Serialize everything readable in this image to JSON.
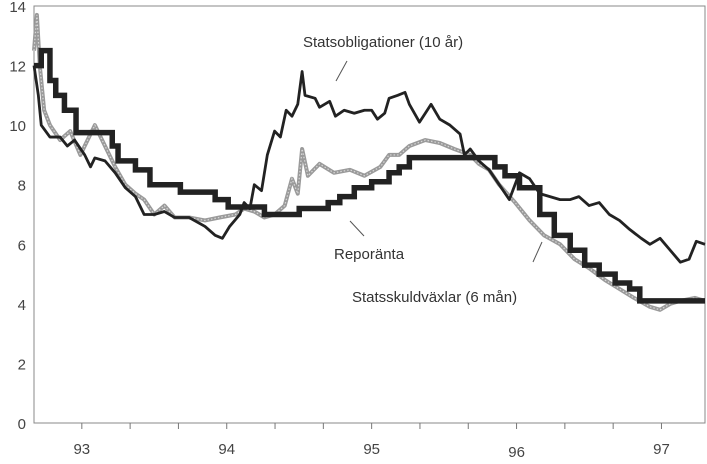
{
  "chart_data": {
    "type": "line",
    "title": "",
    "xlabel": "",
    "ylabel": "",
    "xlim": [
      1992.67,
      1997.3
    ],
    "ylim": [
      0,
      14
    ],
    "grid": false,
    "y_ticks": [
      0,
      2,
      4,
      6,
      8,
      10,
      12,
      14
    ],
    "y_tick_labels": [
      "0",
      "2",
      "4",
      "6",
      "8",
      "10",
      "12",
      "14"
    ],
    "x_tick_interval_years": 0.3333,
    "x_labels": [
      {
        "value": 1993,
        "label": "93"
      },
      {
        "value": 1994,
        "label": "94"
      },
      {
        "value": 1995,
        "label": "95"
      },
      {
        "value": 1996,
        "label": "96"
      },
      {
        "value": 1997,
        "label": "97"
      }
    ],
    "series": [
      {
        "name": "Statsobligationer (10 år)",
        "style": "thin-dark",
        "color": "#222222",
        "points": [
          [
            1992.67,
            12
          ],
          [
            1992.7,
            11
          ],
          [
            1992.72,
            10
          ],
          [
            1992.78,
            9.6
          ],
          [
            1992.85,
            9.6
          ],
          [
            1992.9,
            9.3
          ],
          [
            1992.95,
            9.5
          ],
          [
            1993.02,
            9.0
          ],
          [
            1993.06,
            8.6
          ],
          [
            1993.09,
            8.9
          ],
          [
            1993.16,
            8.8
          ],
          [
            1993.23,
            8.4
          ],
          [
            1993.3,
            7.9
          ],
          [
            1993.37,
            7.6
          ],
          [
            1993.43,
            7.0
          ],
          [
            1993.5,
            7.0
          ],
          [
            1993.57,
            7.1
          ],
          [
            1993.64,
            6.9
          ],
          [
            1993.74,
            6.9
          ],
          [
            1993.85,
            6.6
          ],
          [
            1993.92,
            6.3
          ],
          [
            1993.97,
            6.2
          ],
          [
            1994.02,
            6.6
          ],
          [
            1994.09,
            7.0
          ],
          [
            1994.12,
            7.4
          ],
          [
            1994.16,
            7.2
          ],
          [
            1994.19,
            8.0
          ],
          [
            1994.24,
            7.8
          ],
          [
            1994.28,
            9.0
          ],
          [
            1994.33,
            9.8
          ],
          [
            1994.37,
            9.6
          ],
          [
            1994.41,
            10.5
          ],
          [
            1994.45,
            10.3
          ],
          [
            1994.49,
            10.7
          ],
          [
            1994.52,
            11.8
          ],
          [
            1994.54,
            11.0
          ],
          [
            1994.61,
            10.9
          ],
          [
            1994.64,
            10.6
          ],
          [
            1994.71,
            10.8
          ],
          [
            1994.75,
            10.3
          ],
          [
            1994.81,
            10.5
          ],
          [
            1994.88,
            10.4
          ],
          [
            1994.95,
            10.5
          ],
          [
            1995.0,
            10.5
          ],
          [
            1995.04,
            10.2
          ],
          [
            1995.09,
            10.4
          ],
          [
            1995.12,
            10.9
          ],
          [
            1995.18,
            11.0
          ],
          [
            1995.23,
            11.1
          ],
          [
            1995.26,
            10.7
          ],
          [
            1995.33,
            10.1
          ],
          [
            1995.37,
            10.4
          ],
          [
            1995.41,
            10.7
          ],
          [
            1995.47,
            10.2
          ],
          [
            1995.54,
            10.0
          ],
          [
            1995.61,
            9.7
          ],
          [
            1995.64,
            9.0
          ],
          [
            1995.68,
            9.2
          ],
          [
            1995.74,
            8.8
          ],
          [
            1995.81,
            8.5
          ],
          [
            1995.88,
            8.0
          ],
          [
            1995.95,
            7.5
          ],
          [
            1996.02,
            8.4
          ],
          [
            1996.09,
            8.2
          ],
          [
            1996.16,
            7.7
          ],
          [
            1996.23,
            7.6
          ],
          [
            1996.3,
            7.5
          ],
          [
            1996.37,
            7.5
          ],
          [
            1996.43,
            7.6
          ],
          [
            1996.5,
            7.3
          ],
          [
            1996.57,
            7.4
          ],
          [
            1996.64,
            7.0
          ],
          [
            1996.71,
            6.8
          ],
          [
            1996.78,
            6.5
          ],
          [
            1996.86,
            6.2
          ],
          [
            1996.92,
            6.0
          ],
          [
            1996.99,
            6.2
          ],
          [
            1997.06,
            5.8
          ],
          [
            1997.13,
            5.4
          ],
          [
            1997.19,
            5.5
          ],
          [
            1997.24,
            6.1
          ],
          [
            1997.3,
            6.0
          ]
        ]
      },
      {
        "name": "Reporänta",
        "style": "thick-step",
        "color": "#222222",
        "points": [
          [
            1992.67,
            12
          ],
          [
            1992.72,
            12.5
          ],
          [
            1992.78,
            11.5
          ],
          [
            1992.82,
            11
          ],
          [
            1992.88,
            10.5
          ],
          [
            1992.96,
            9.75
          ],
          [
            1993.21,
            9.3
          ],
          [
            1993.25,
            8.8
          ],
          [
            1993.37,
            8.5
          ],
          [
            1993.47,
            8.0
          ],
          [
            1993.68,
            7.75
          ],
          [
            1993.92,
            7.5
          ],
          [
            1994.01,
            7.25
          ],
          [
            1994.26,
            7.0
          ],
          [
            1994.5,
            7.2
          ],
          [
            1994.7,
            7.4
          ],
          [
            1994.78,
            7.6
          ],
          [
            1994.88,
            7.9
          ],
          [
            1995.0,
            8.1
          ],
          [
            1995.12,
            8.4
          ],
          [
            1995.19,
            8.6
          ],
          [
            1995.26,
            8.91
          ],
          [
            1995.85,
            8.6
          ],
          [
            1995.92,
            8.3
          ],
          [
            1996.02,
            7.9
          ],
          [
            1996.16,
            7.0
          ],
          [
            1996.26,
            6.3
          ],
          [
            1996.37,
            5.8
          ],
          [
            1996.47,
            5.3
          ],
          [
            1996.57,
            5.0
          ],
          [
            1996.68,
            4.7
          ],
          [
            1996.78,
            4.5
          ],
          [
            1996.85,
            4.1
          ],
          [
            1997.3,
            4.1
          ]
        ]
      },
      {
        "name": "Statsskuldväxlar (6 mån)",
        "style": "gray-stipple",
        "color": "#9a9a9a",
        "points": [
          [
            1992.67,
            12.5
          ],
          [
            1992.69,
            13.7
          ],
          [
            1992.71,
            12
          ],
          [
            1992.74,
            10.5
          ],
          [
            1992.78,
            10
          ],
          [
            1992.85,
            9.5
          ],
          [
            1992.92,
            9.8
          ],
          [
            1992.99,
            9.0
          ],
          [
            1993.09,
            10.0
          ],
          [
            1993.16,
            9.3
          ],
          [
            1993.23,
            8.6
          ],
          [
            1993.3,
            8.0
          ],
          [
            1993.37,
            7.7
          ],
          [
            1993.43,
            7.5
          ],
          [
            1993.5,
            7.0
          ],
          [
            1993.57,
            7.3
          ],
          [
            1993.64,
            6.9
          ],
          [
            1993.74,
            6.9
          ],
          [
            1993.85,
            6.8
          ],
          [
            1993.95,
            6.9
          ],
          [
            1994.06,
            7.0
          ],
          [
            1994.12,
            7.2
          ],
          [
            1994.19,
            7.1
          ],
          [
            1994.26,
            6.9
          ],
          [
            1994.33,
            7.0
          ],
          [
            1994.4,
            7.3
          ],
          [
            1994.45,
            8.2
          ],
          [
            1994.49,
            7.7
          ],
          [
            1994.52,
            9.2
          ],
          [
            1994.56,
            8.3
          ],
          [
            1994.64,
            8.7
          ],
          [
            1994.74,
            8.4
          ],
          [
            1994.85,
            8.5
          ],
          [
            1994.95,
            8.3
          ],
          [
            1995.06,
            8.6
          ],
          [
            1995.12,
            9.0
          ],
          [
            1995.19,
            9.0
          ],
          [
            1995.26,
            9.3
          ],
          [
            1995.37,
            9.5
          ],
          [
            1995.47,
            9.4
          ],
          [
            1995.57,
            9.2
          ],
          [
            1995.68,
            9.0
          ],
          [
            1995.74,
            8.7
          ],
          [
            1995.81,
            8.5
          ],
          [
            1995.88,
            8.0
          ],
          [
            1995.99,
            7.4
          ],
          [
            1996.09,
            6.8
          ],
          [
            1996.19,
            6.3
          ],
          [
            1996.3,
            6.0
          ],
          [
            1996.4,
            5.5
          ],
          [
            1996.5,
            5.2
          ],
          [
            1996.61,
            4.8
          ],
          [
            1996.71,
            4.5
          ],
          [
            1996.81,
            4.2
          ],
          [
            1996.92,
            3.9
          ],
          [
            1996.99,
            3.8
          ],
          [
            1997.06,
            4.0
          ],
          [
            1997.13,
            4.1
          ],
          [
            1997.23,
            4.2
          ],
          [
            1997.3,
            4.1
          ]
        ]
      }
    ],
    "annotations": [
      "Statsobligationer (10 år)",
      "Reporänta",
      "Statsskuldväxlar (6 mån)"
    ]
  }
}
